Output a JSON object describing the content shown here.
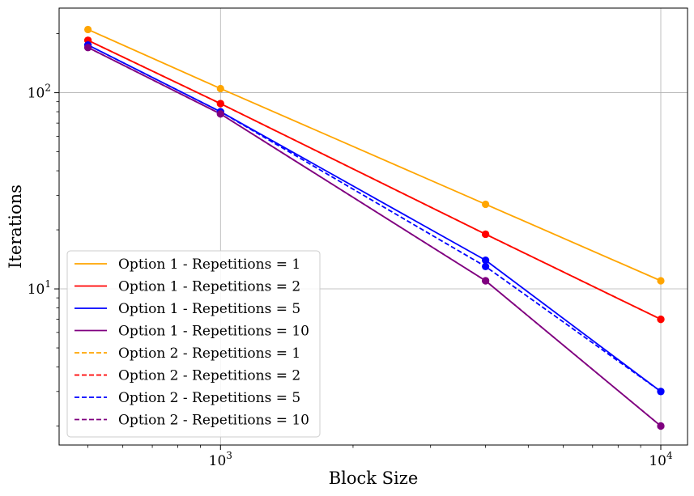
{
  "chart_data": {
    "type": "line",
    "title": "",
    "xlabel": "Block Size",
    "ylabel": "Iterations",
    "xscale": "log",
    "yscale": "log",
    "xlim": [
      430,
      11500
    ],
    "ylim": [
      1.6,
      270
    ],
    "grid": true,
    "legend_position": "lower-left",
    "x_ticks": [
      {
        "value": 1000,
        "base": "10",
        "exp": "3"
      },
      {
        "value": 10000,
        "base": "10",
        "exp": "4"
      }
    ],
    "y_ticks": [
      {
        "value": 10,
        "base": "10",
        "exp": "1"
      },
      {
        "value": 100,
        "base": "10",
        "exp": "2"
      }
    ],
    "x": [
      500,
      1000,
      4000,
      10000
    ],
    "series": [
      {
        "name": "Option 1 - Repetitions = 1",
        "color": "#ffa500",
        "dash": "solid",
        "values": [
          210,
          105,
          27,
          11
        ]
      },
      {
        "name": "Option 1 - Repetitions = 2",
        "color": "#ff0000",
        "dash": "solid",
        "values": [
          185,
          88,
          19,
          7
        ]
      },
      {
        "name": "Option 1 - Repetitions = 5",
        "color": "#0000ff",
        "dash": "solid",
        "values": [
          175,
          80,
          14,
          3
        ]
      },
      {
        "name": "Option 1 - Repetitions = 10",
        "color": "#800080",
        "dash": "solid",
        "values": [
          170,
          78,
          11,
          2
        ]
      },
      {
        "name": "Option 2 - Repetitions = 1",
        "color": "#ffa500",
        "dash": "dashed",
        "values": [
          185,
          88,
          19,
          7
        ]
      },
      {
        "name": "Option 2 - Repetitions = 2",
        "color": "#ff0000",
        "dash": "dashed",
        "values": [
          185,
          88,
          19,
          7
        ]
      },
      {
        "name": "Option 2 - Repetitions = 5",
        "color": "#0000ff",
        "dash": "dashed",
        "values": [
          175,
          80,
          13,
          3
        ]
      },
      {
        "name": "Option 2 - Repetitions = 10",
        "color": "#800080",
        "dash": "dashed",
        "values": [
          170,
          78,
          11,
          2
        ]
      }
    ]
  }
}
